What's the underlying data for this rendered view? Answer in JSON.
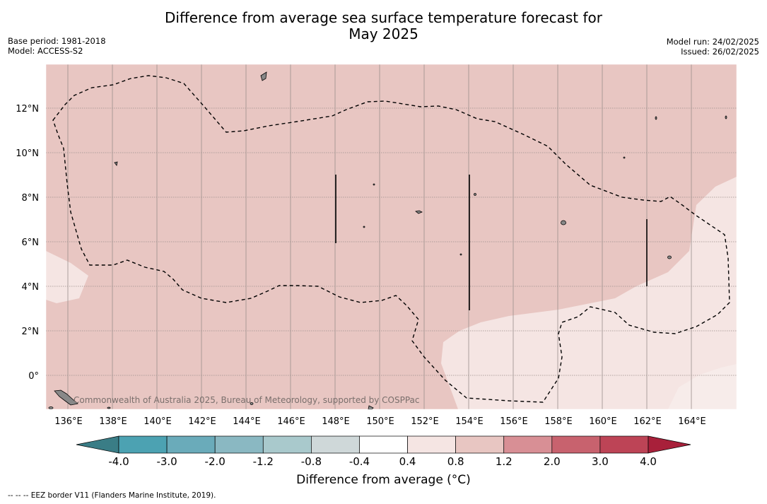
{
  "title": {
    "line1": "Difference from average sea surface temperature forecast for",
    "line2": "May 2025"
  },
  "meta_left": {
    "base_period": "Base period: 1981-2018",
    "model": "Model: ACCESS-S2"
  },
  "meta_right": {
    "model_run": "Model run: 24/02/2025",
    "issued": "Issued: 26/02/2025"
  },
  "map": {
    "copyright": "Commonwealth of Australia 2025, Bureau of Meteorology, supported by COSPPac",
    "x_ticks": [
      "136°E",
      "138°E",
      "140°E",
      "142°E",
      "144°E",
      "146°E",
      "148°E",
      "150°E",
      "152°E",
      "154°E",
      "156°E",
      "158°E",
      "160°E",
      "162°E",
      "164°E"
    ],
    "y_ticks": [
      "12°N",
      "10°N",
      "8°N",
      "6°N",
      "4°N",
      "2°N",
      "0°"
    ],
    "colors": {
      "anomaly_0_8_to_1_2": "#e8c6c2",
      "anomaly_0_4_to_0_8": "#f5e5e3",
      "land": "#888888",
      "eez_border": "#000000"
    }
  },
  "colorbar": {
    "ticks": [
      "-4.0",
      "-3.0",
      "-2.0",
      "-1.2",
      "-0.8",
      "-0.4",
      "0.4",
      "0.8",
      "1.2",
      "2.0",
      "3.0",
      "4.0"
    ],
    "colors": [
      "#3a7d86",
      "#4ca2b2",
      "#6aabba",
      "#8ab8c2",
      "#a9c9cc",
      "#cfd8d9",
      "#ffffff",
      "#f5e5e3",
      "#e8c6c2",
      "#d88f95",
      "#c8626e",
      "#bd4456",
      "#a8203a"
    ],
    "label": "Difference from average (°C)"
  },
  "footnote": "--  --  -- EEZ border V11 (Flanders Marine Institute, 2019)."
}
